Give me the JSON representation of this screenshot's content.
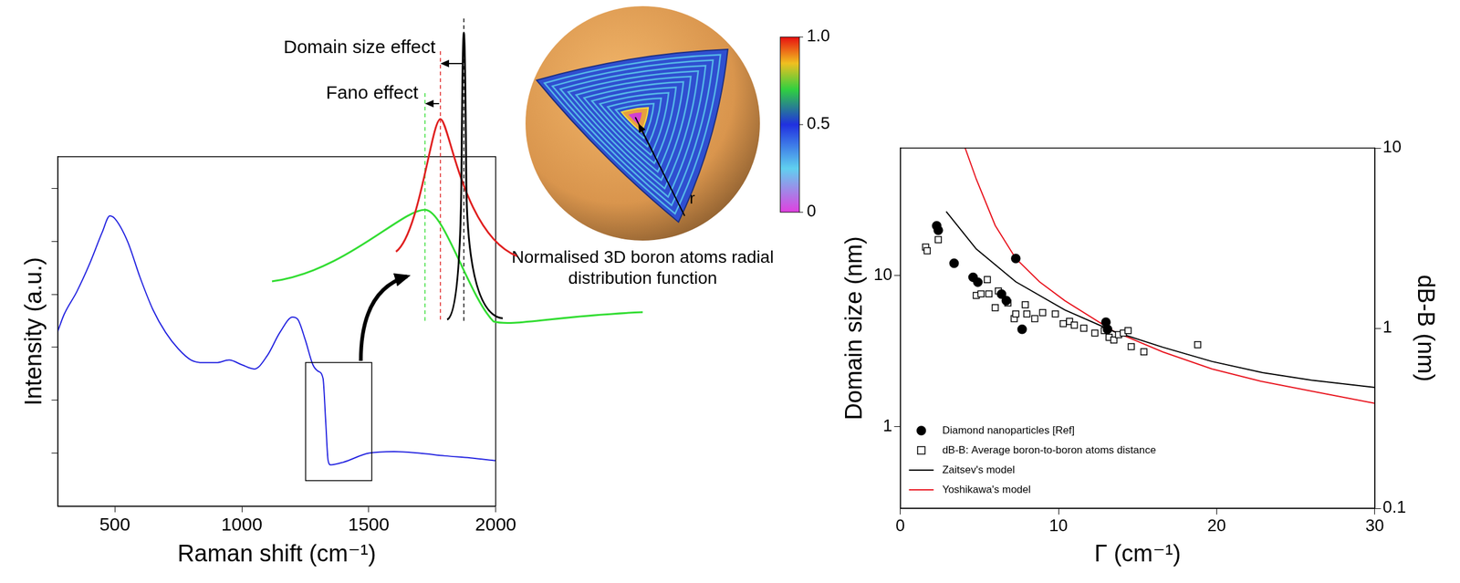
{
  "chart_data": [
    {
      "type": "line",
      "x_label": "Raman shift (cm⁻¹)",
      "y_label": "Intensity (a.u.)",
      "x": [
        275,
        300,
        350,
        400,
        450,
        480,
        500,
        550,
        600,
        650,
        700,
        750,
        800,
        850,
        900,
        950,
        1000,
        1050,
        1100,
        1150,
        1200,
        1220,
        1250,
        1280,
        1300,
        1320,
        1330,
        1340,
        1350,
        1400,
        1500,
        1600,
        1700,
        1800,
        1900,
        2000
      ],
      "values": [
        3.3,
        3.62,
        4.05,
        4.57,
        5.17,
        5.48,
        5.43,
        5.0,
        4.31,
        3.71,
        3.28,
        2.97,
        2.76,
        2.71,
        2.71,
        2.76,
        2.67,
        2.59,
        2.84,
        3.28,
        3.57,
        3.53,
        3.14,
        2.67,
        2.55,
        2.41,
        1.64,
        0.86,
        0.78,
        0.83,
        1.0,
        1.03,
        1.0,
        0.95,
        0.91,
        0.86
      ],
      "color": "#2323e0",
      "line_style": "solid",
      "xlim": [
        275,
        2000
      ],
      "xticks": [
        500,
        1000,
        1500,
        2000
      ],
      "ylim": [
        0,
        6.6
      ],
      "yticks": [
        1,
        2,
        3,
        4,
        5,
        6
      ],
      "tick_labels": "x",
      "grid": false
    },
    {
      "type": "scatter",
      "x_label": "Γ (cm⁻¹)",
      "y_label": "Domain size (nm)",
      "y2_label": "dB-B (nm)",
      "log": "y",
      "xlim": [
        0,
        30
      ],
      "xticks": [
        0,
        10,
        20,
        30
      ],
      "ylim": [
        0.29,
        69
      ],
      "yticks": [
        1,
        10
      ],
      "y2lim": [
        0.1,
        10
      ],
      "y2ticks": [
        0.1,
        1,
        10
      ],
      "legend": "lower left",
      "grid": false,
      "series": [
        {
          "name": "Diamond nanoparticles [Ref]",
          "type": "scatter",
          "marker": "circle",
          "color": "#000000",
          "x": [
            2.3,
            2.4,
            3.4,
            4.6,
            4.9,
            6.4,
            6.7,
            7.3,
            7.7,
            13.0,
            13.1
          ],
          "values": [
            21.2,
            19.8,
            12.0,
            9.7,
            9.0,
            7.5,
            6.8,
            12.9,
            4.4,
            4.9,
            4.4
          ]
        },
        {
          "name": "dB-B: Average boron-to-boron atoms distance",
          "type": "scatter",
          "marker": "open-square",
          "color": "#000000",
          "axis": "y2",
          "x": [
            1.6,
            1.7,
            2.4,
            4.8,
            5.1,
            5.5,
            5.6,
            6.0,
            6.2,
            6.8,
            7.2,
            7.3,
            7.9,
            8.0,
            8.5,
            9.0,
            9.8,
            10.3,
            10.7,
            11.0,
            11.6,
            12.3,
            12.9,
            13.2,
            13.5,
            13.8,
            14.1,
            14.4,
            14.6,
            15.4,
            18.8
          ],
          "values": [
            2.82,
            2.69,
            3.1,
            1.52,
            1.55,
            1.86,
            1.55,
            1.3,
            1.61,
            1.38,
            1.13,
            1.2,
            1.35,
            1.2,
            1.13,
            1.22,
            1.2,
            1.06,
            1.09,
            1.04,
            1.0,
            0.94,
            0.97,
            0.89,
            0.86,
            0.92,
            0.94,
            0.97,
            0.79,
            0.74,
            0.81
          ]
        },
        {
          "name": "Zaitsev's model",
          "type": "line",
          "marker": "none",
          "line_style": "solid",
          "color": "#000000",
          "x": [
            2.9,
            4.8,
            7.3,
            10.4,
            13.5,
            16.6,
            19.7,
            22.9,
            26.0,
            30
          ],
          "values": [
            26.3,
            14.9,
            9.05,
            5.9,
            4.26,
            3.35,
            2.7,
            2.28,
            2.03,
            1.82
          ]
        },
        {
          "name": "Yoshikawa's model",
          "type": "line",
          "marker": "none",
          "line_style": "solid",
          "color": "#e8141e",
          "x": [
            4.1,
            4.8,
            6.0,
            7.3,
            8.8,
            10.4,
            13.5,
            16.6,
            19.7,
            22.8,
            26.0,
            30
          ],
          "values": [
            69,
            43.1,
            21.3,
            12.9,
            9.05,
            6.8,
            4.26,
            3.12,
            2.41,
            2.0,
            1.72,
            1.43
          ]
        }
      ]
    }
  ],
  "inset": {
    "annotations": [
      "Domain size effect",
      "Fano effect"
    ],
    "colors": [
      "#000000",
      "#e02020",
      "#33dd33"
    ]
  },
  "sphere": {
    "label": "Normalised 3D boron atoms radial distribution function",
    "radius_label": "r",
    "colorbar": {
      "range": [
        0,
        1
      ],
      "ticks": [
        {
          "value": 1,
          "label": "1.0"
        },
        0.5,
        0
      ]
    }
  }
}
